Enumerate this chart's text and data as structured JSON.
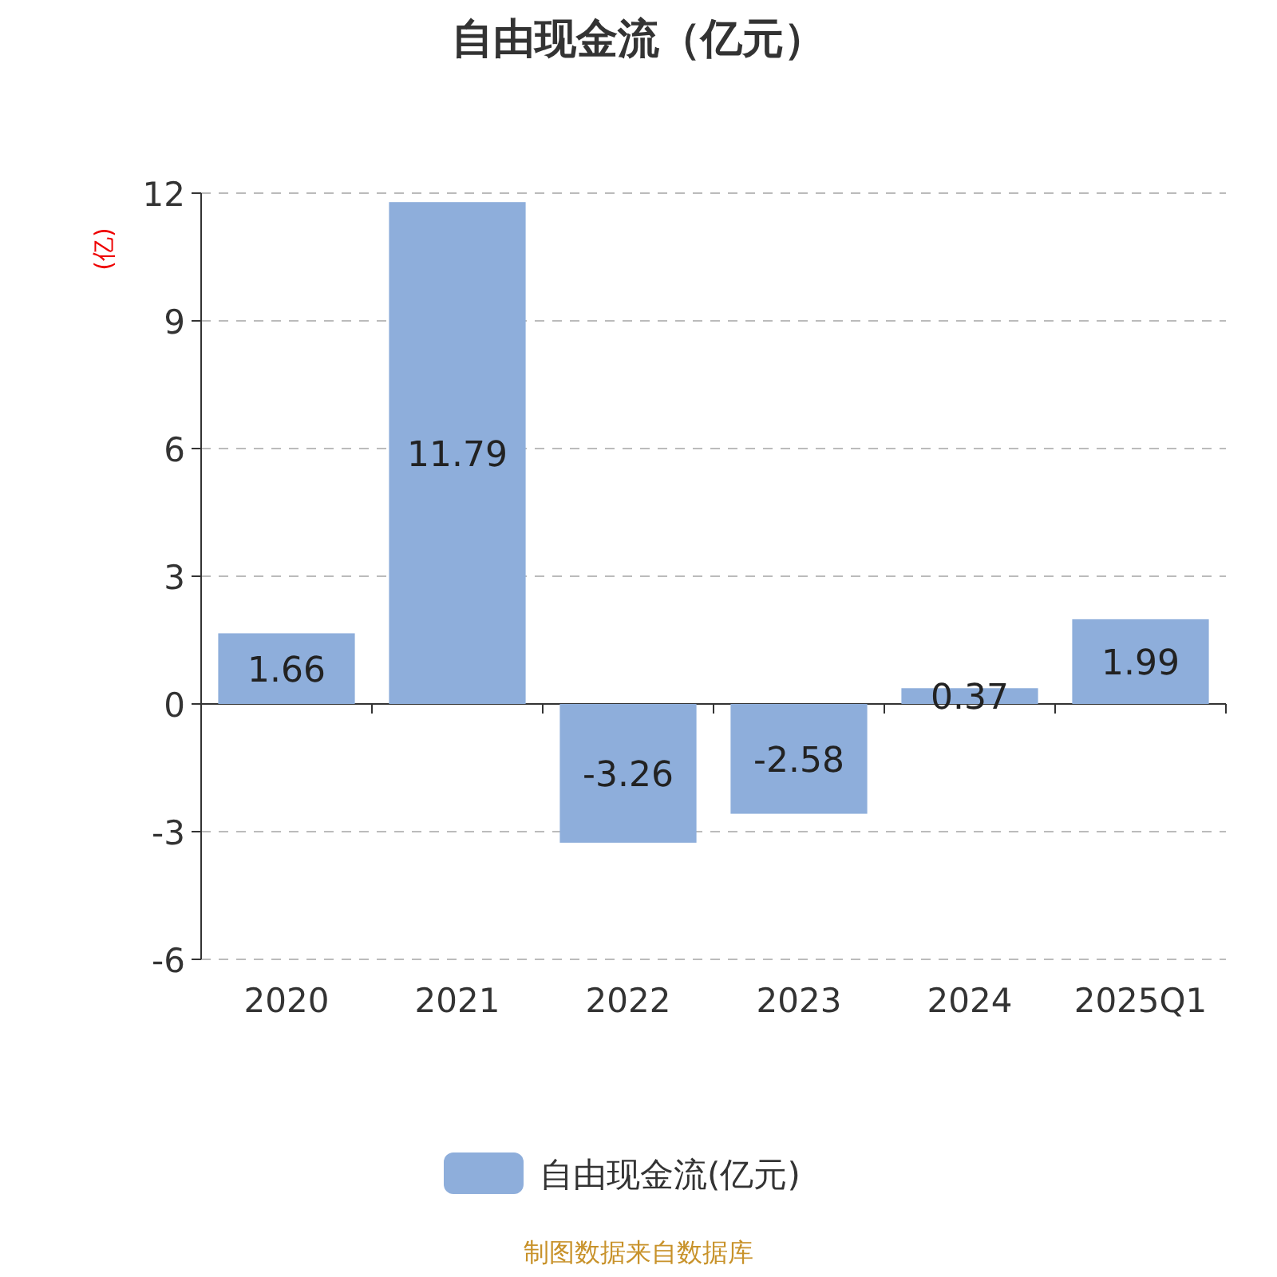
{
  "chart_data": {
    "type": "bar",
    "title": "自由现金流（亿元）",
    "ylabel": "(亿)",
    "categories": [
      "2020",
      "2021",
      "2022",
      "2023",
      "2024",
      "2025Q1"
    ],
    "series": [
      {
        "name": "自由现金流(亿元)",
        "color": "#8eaedb",
        "values": [
          1.66,
          11.79,
          -3.26,
          -2.58,
          0.37,
          1.99
        ]
      }
    ],
    "ylim": [
      -6,
      12
    ],
    "yticks": [
      -6,
      -3,
      0,
      3,
      6,
      9,
      12
    ],
    "grid": "y",
    "legend": "bottom",
    "data_labels": true,
    "annotations": [
      "制图数据来自数据库"
    ]
  }
}
